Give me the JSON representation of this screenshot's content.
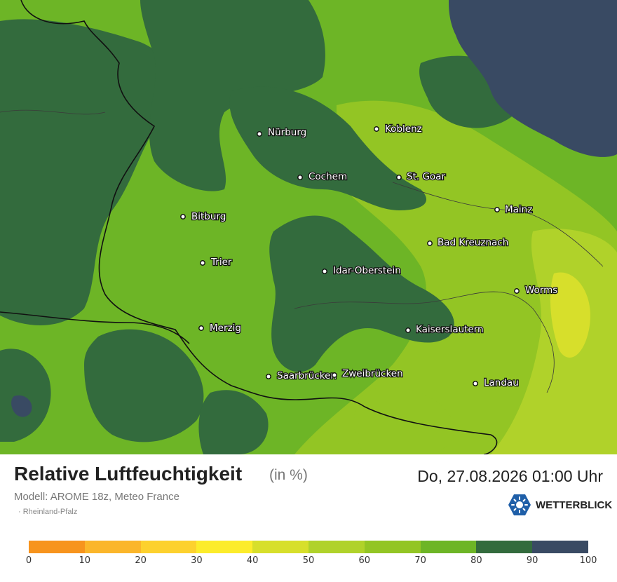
{
  "map": {
    "cities": [
      {
        "name": "Nürburg"
      },
      {
        "name": "Koblenz"
      },
      {
        "name": "Cochem"
      },
      {
        "name": "St. Goar"
      },
      {
        "name": "Bitburg"
      },
      {
        "name": "Mainz"
      },
      {
        "name": "Bad Kreuznach"
      },
      {
        "name": "Trier"
      },
      {
        "name": "Idar-Oberstein"
      },
      {
        "name": "Worms"
      },
      {
        "name": "Merzig"
      },
      {
        "name": "Kaiserslautern"
      },
      {
        "name": "Saarbrücken"
      },
      {
        "name": "Zweibrücken"
      },
      {
        "name": "Landau"
      }
    ]
  },
  "legend": {
    "title": "Relative Luftfeuchtigkeit",
    "unit": "(in %)",
    "datetime": "Do, 27.08.2026 01:00 Uhr",
    "model": "Modell: AROME 18z, Meteo France",
    "region": "· Rheinland-Pfalz",
    "brand": "WETTERBLICK",
    "scale_colors": [
      "#f7941d",
      "#fbb62a",
      "#fdd12e",
      "#fcec2b",
      "#d7df2b",
      "#b0d22a",
      "#93c524",
      "#6db526",
      "#336b3d",
      "#394a63"
    ],
    "ticks": [
      "0",
      "10",
      "20",
      "30",
      "40",
      "50",
      "60",
      "70",
      "80",
      "90",
      "100"
    ]
  },
  "colors": {
    "dark_green": "#336b3d",
    "mid_green": "#6db526",
    "light_green": "#93c524",
    "lime": "#b0d22a",
    "yellow_green": "#d7df2b",
    "navy": "#394a63",
    "brand_blue": "#1f5fa8"
  }
}
